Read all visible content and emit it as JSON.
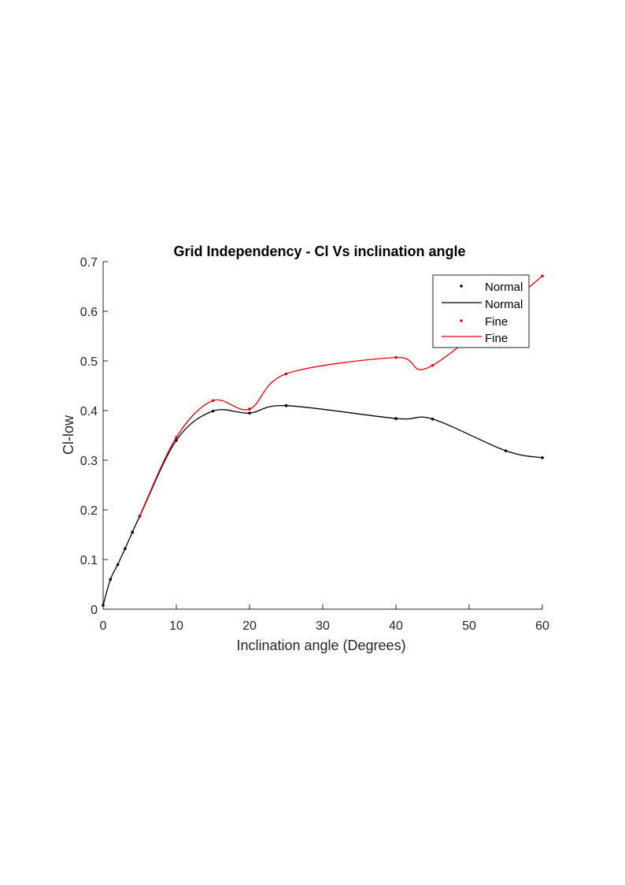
{
  "chart_data": {
    "type": "line",
    "title": "Grid Independency - Cl Vs  inclination angle",
    "xlabel": "Inclination angle (Degrees)",
    "ylabel": "Cl-low",
    "xlim": [
      0,
      60
    ],
    "ylim": [
      0,
      0.7
    ],
    "xticks": [
      "0",
      "10",
      "20",
      "30",
      "40",
      "50",
      "60"
    ],
    "yticks": [
      "0",
      "0.1",
      "0.2",
      "0.3",
      "0.4",
      "0.5",
      "0.6",
      "0.7"
    ],
    "grid": false,
    "legend_position": "top-right",
    "legend": [
      "Normal",
      "Normal",
      "Fine",
      "Fine"
    ],
    "series": [
      {
        "name": "Normal",
        "color": "#000000",
        "x": [
          0,
          1,
          2,
          3,
          4,
          5,
          10,
          15,
          20,
          25,
          40,
          45,
          55,
          60
        ],
        "y": [
          0.008,
          0.06,
          0.09,
          0.122,
          0.155,
          0.187,
          0.34,
          0.399,
          0.395,
          0.41,
          0.384,
          0.383,
          0.319,
          0.305
        ]
      },
      {
        "name": "Fine",
        "color": "#e8000b",
        "x": [
          5,
          10,
          15,
          20,
          25,
          40,
          45,
          60
        ],
        "y": [
          0.188,
          0.346,
          0.42,
          0.403,
          0.474,
          0.507,
          0.491,
          0.671
        ]
      }
    ]
  }
}
